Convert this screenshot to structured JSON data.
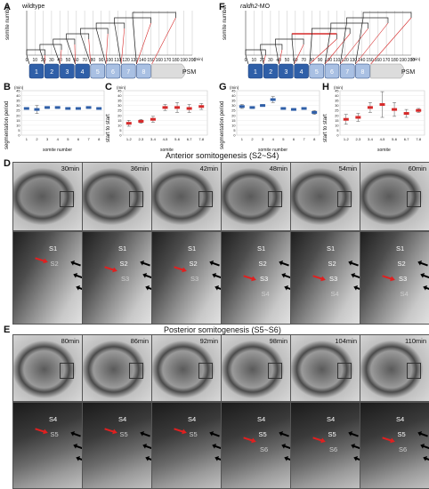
{
  "panel_A": {
    "letter": "A",
    "condition": "wildtype",
    "ylabel": "somite number",
    "xunit": "(min)",
    "xticks": [
      "0",
      "10",
      "20",
      "30",
      "40",
      "50",
      "60",
      "70",
      "80",
      "90",
      "100",
      "110",
      "120",
      "130",
      "140",
      "150",
      "160",
      "170",
      "180",
      "190",
      "200"
    ]
  },
  "panel_F": {
    "letter": "F",
    "condition": "raldh2",
    "condition_suffix": "-MO",
    "ylabel": "somite number",
    "xunit": "(min)",
    "xticks": [
      "0",
      "10",
      "20",
      "30",
      "40",
      "50",
      "60",
      "70",
      "80",
      "90",
      "100",
      "110",
      "120",
      "130",
      "140",
      "150",
      "160",
      "170",
      "180",
      "190",
      "200"
    ]
  },
  "somite_bar": {
    "labels": [
      "1",
      "2",
      "3",
      "4",
      "5",
      "6",
      "7",
      "8"
    ],
    "psm": "PSM"
  },
  "panel_B": {
    "letter": "B",
    "ylabel": "segmentation period",
    "yunit": "(min)",
    "xlabel": "somite number",
    "xticks": [
      "1",
      "2",
      "3",
      "4",
      "5",
      "6",
      "7",
      "8"
    ],
    "yticks": [
      "0",
      "5",
      "10",
      "15",
      "20",
      "25",
      "30",
      "35",
      "40",
      "45"
    ]
  },
  "panel_C": {
    "letter": "C",
    "ylabel": "start to start",
    "yunit": "(min)",
    "xlabel": "somite",
    "xticks": [
      "1-2",
      "2-3",
      "3-4",
      "4-5",
      "5-6",
      "6-7",
      "7-8"
    ],
    "yticks": [
      "0",
      "5",
      "10",
      "15",
      "20",
      "25",
      "30",
      "35",
      "40",
      "45"
    ]
  },
  "panel_G": {
    "letter": "G",
    "ylabel": "segmentation period",
    "yunit": "(min)",
    "xlabel": "somite number",
    "xticks": [
      "1",
      "2",
      "3",
      "4",
      "5",
      "6",
      "7",
      "8"
    ],
    "yticks": [
      "0",
      "5",
      "10",
      "15",
      "20",
      "25",
      "30",
      "35",
      "40",
      "45"
    ]
  },
  "panel_H": {
    "letter": "H",
    "ylabel": "start to start",
    "yunit": "(min)",
    "xlabel": "somite",
    "xticks": [
      "1-2",
      "2-3",
      "3-4",
      "4-5",
      "5-6",
      "6-7",
      "7-8"
    ],
    "yticks": [
      "0",
      "5",
      "10",
      "15",
      "20",
      "25",
      "30",
      "35",
      "40",
      "45"
    ]
  },
  "panel_D": {
    "letter": "D",
    "title": "Anterior somitogenesis (S2~S4)",
    "times": [
      "30min",
      "36min",
      "42min",
      "48min",
      "54min",
      "60min"
    ],
    "somite_labels": [
      [
        "S1",
        "S2"
      ],
      [
        "S1",
        "S2",
        "S3"
      ],
      [
        "S1",
        "S2",
        "S3"
      ],
      [
        "S1",
        "S2",
        "S3",
        "S4"
      ],
      [
        "S1",
        "S2",
        "S3",
        "S4"
      ],
      [
        "S1",
        "S2",
        "S3",
        "S4"
      ]
    ]
  },
  "panel_E": {
    "letter": "E",
    "title": "Posterior somitogenesis (S5~S6)",
    "times": [
      "80min",
      "86min",
      "92min",
      "98min",
      "104min",
      "110min"
    ],
    "somite_labels": [
      [
        "S4",
        "S5"
      ],
      [
        "S4",
        "S5"
      ],
      [
        "S4",
        "S5"
      ],
      [
        "S4",
        "S5",
        "S6"
      ],
      [
        "S4",
        "S5",
        "S6"
      ],
      [
        "S4",
        "S5",
        "S6"
      ]
    ]
  },
  "colors": {
    "dark_blue": "#2f5fa8",
    "light_blue": "#a9c0e3",
    "red": "#d62a2a",
    "psm_gray": "#dcdcdc"
  },
  "chart_data": [
    {
      "type": "scatter",
      "panel": "B",
      "x": [
        1,
        2,
        3,
        4,
        5,
        6,
        7,
        8
      ],
      "values": [
        27,
        26,
        28,
        28,
        27,
        27,
        28,
        27
      ],
      "ylim": [
        0,
        45
      ]
    },
    {
      "type": "scatter",
      "panel": "C",
      "categories": [
        "1-2",
        "2-3",
        "3-4",
        "4-5",
        "5-6",
        "6-7",
        "7-8"
      ],
      "values": [
        12,
        14,
        16,
        28,
        28,
        27,
        29
      ],
      "ylim": [
        0,
        45
      ]
    },
    {
      "type": "scatter",
      "panel": "G",
      "x": [
        1,
        2,
        3,
        4,
        5,
        6,
        7,
        8
      ],
      "values": [
        29,
        28,
        30,
        36,
        27,
        26,
        27,
        23
      ],
      "ylim": [
        0,
        45
      ]
    },
    {
      "type": "scatter",
      "panel": "H",
      "categories": [
        "1-2",
        "2-3",
        "3-4",
        "4-5",
        "5-6",
        "6-7",
        "7-8"
      ],
      "values": [
        16,
        18,
        28,
        31,
        26,
        22,
        25
      ],
      "ylim": [
        0,
        45
      ]
    }
  ]
}
